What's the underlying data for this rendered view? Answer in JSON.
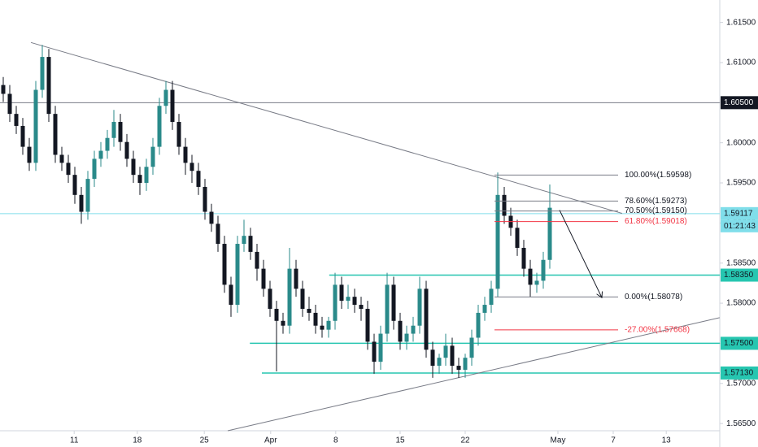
{
  "chart_data": {
    "type": "candlestick",
    "xlim": [
      0,
      110.625
    ],
    "ylim": [
      1.5641,
      1.6178
    ],
    "xticks": [
      {
        "value": 11.4,
        "label": "11"
      },
      {
        "value": 21.1,
        "label": "18"
      },
      {
        "value": 31.4,
        "label": "25"
      },
      {
        "value": 41.6,
        "label": "Apr"
      },
      {
        "value": 51.6,
        "label": "8"
      },
      {
        "value": 61.5,
        "label": "15"
      },
      {
        "value": 71.5,
        "label": "22"
      },
      {
        "value": 85.75,
        "label": "May"
      },
      {
        "value": 94.25,
        "label": "7"
      },
      {
        "value": 102.4,
        "label": "13"
      }
    ],
    "yticks": [
      {
        "value": 1.565,
        "label": "1.56500"
      },
      {
        "value": 1.57,
        "label": "1.57000"
      },
      {
        "value": 1.575,
        "label": "1.57500"
      },
      {
        "value": 1.58,
        "label": "1.58000"
      },
      {
        "value": 1.585,
        "label": "1.58500"
      },
      {
        "value": 1.59,
        "label": "1.59000"
      },
      {
        "value": 1.595,
        "label": "1.59500"
      },
      {
        "value": 1.6,
        "label": "1.60000"
      },
      {
        "value": 1.605,
        "label": "1.60500"
      },
      {
        "value": 1.61,
        "label": "1.61000"
      },
      {
        "value": 1.615,
        "label": "1.61500"
      }
    ],
    "up_color": "#2a8a8a",
    "down_color": "#131722",
    "ohlc": [
      [
        1.6072,
        1.6082,
        1.6051,
        1.6061
      ],
      [
        1.6061,
        1.6072,
        1.6026,
        1.6036
      ],
      [
        1.6036,
        1.6046,
        1.6011,
        1.6021
      ],
      [
        1.6021,
        1.6031,
        1.5985,
        1.5995
      ],
      [
        1.5995,
        1.6006,
        1.5965,
        1.5975
      ],
      [
        1.5975,
        1.6077,
        1.5965,
        1.6066
      ],
      [
        1.6066,
        1.6122,
        1.6056,
        1.6107
      ],
      [
        1.6107,
        1.6117,
        1.6026,
        1.6036
      ],
      [
        1.6036,
        1.6046,
        1.5975,
        1.5985
      ],
      [
        1.5985,
        1.5995,
        1.5965,
        1.5975
      ],
      [
        1.5975,
        1.5985,
        1.595,
        1.596
      ],
      [
        1.596,
        1.597,
        1.5924,
        1.5935
      ],
      [
        1.5935,
        1.5945,
        1.5899,
        1.5914
      ],
      [
        1.5914,
        1.5965,
        1.5904,
        1.5955
      ],
      [
        1.5955,
        1.599,
        1.5945,
        1.598
      ],
      [
        1.598,
        1.6001,
        1.597,
        1.599
      ],
      [
        1.599,
        1.6016,
        1.598,
        1.6006
      ],
      [
        1.6006,
        1.6041,
        1.5995,
        1.6026
      ],
      [
        1.6026,
        1.6036,
        1.599,
        1.6001
      ],
      [
        1.6001,
        1.6011,
        1.597,
        1.598
      ],
      [
        1.598,
        1.599,
        1.595,
        1.596
      ],
      [
        1.596,
        1.597,
        1.5935,
        1.595
      ],
      [
        1.595,
        1.598,
        1.594,
        1.597
      ],
      [
        1.597,
        1.6006,
        1.596,
        1.5995
      ],
      [
        1.5995,
        1.6056,
        1.5985,
        1.6046
      ],
      [
        1.6046,
        1.6077,
        1.6036,
        1.6066
      ],
      [
        1.6066,
        1.6077,
        1.6016,
        1.6026
      ],
      [
        1.6026,
        1.6036,
        1.5985,
        1.5995
      ],
      [
        1.5995,
        1.6006,
        1.596,
        1.5975
      ],
      [
        1.5975,
        1.5985,
        1.595,
        1.5965
      ],
      [
        1.5965,
        1.5975,
        1.5935,
        1.5945
      ],
      [
        1.5945,
        1.5955,
        1.5904,
        1.5914
      ],
      [
        1.5914,
        1.5924,
        1.5889,
        1.5899
      ],
      [
        1.5899,
        1.5909,
        1.5864,
        1.5874
      ],
      [
        1.5874,
        1.5884,
        1.5813,
        1.5823
      ],
      [
        1.5823,
        1.5833,
        1.5783,
        1.5798
      ],
      [
        1.5798,
        1.5884,
        1.5788,
        1.5874
      ],
      [
        1.5874,
        1.5904,
        1.5864,
        1.5884
      ],
      [
        1.5884,
        1.5894,
        1.5854,
        1.5864
      ],
      [
        1.5864,
        1.5874,
        1.5828,
        1.5843
      ],
      [
        1.5843,
        1.5854,
        1.5808,
        1.5818
      ],
      [
        1.5818,
        1.5828,
        1.5783,
        1.5793
      ],
      [
        1.5793,
        1.5803,
        1.5715,
        1.5778
      ],
      [
        1.5778,
        1.5788,
        1.5762,
        1.5772
      ],
      [
        1.5772,
        1.5869,
        1.5762,
        1.5843
      ],
      [
        1.5843,
        1.5854,
        1.5808,
        1.5818
      ],
      [
        1.5818,
        1.5828,
        1.5783,
        1.5793
      ],
      [
        1.5793,
        1.5808,
        1.5778,
        1.5788
      ],
      [
        1.5788,
        1.5798,
        1.5762,
        1.5772
      ],
      [
        1.5772,
        1.5783,
        1.5757,
        1.5767
      ],
      [
        1.5767,
        1.5783,
        1.5757,
        1.5778
      ],
      [
        1.5778,
        1.5838,
        1.5767,
        1.5823
      ],
      [
        1.5823,
        1.5833,
        1.5793,
        1.5803
      ],
      [
        1.5803,
        1.5823,
        1.5793,
        1.5808
      ],
      [
        1.5808,
        1.5818,
        1.5788,
        1.5798
      ],
      [
        1.5798,
        1.5808,
        1.5778,
        1.5793
      ],
      [
        1.5793,
        1.5803,
        1.5742,
        1.5752
      ],
      [
        1.5752,
        1.5762,
        1.5712,
        1.5727
      ],
      [
        1.5727,
        1.5772,
        1.5717,
        1.5762
      ],
      [
        1.5762,
        1.5838,
        1.5752,
        1.5823
      ],
      [
        1.5823,
        1.5833,
        1.5767,
        1.5778
      ],
      [
        1.5778,
        1.5788,
        1.5742,
        1.5752
      ],
      [
        1.5752,
        1.5772,
        1.5742,
        1.5762
      ],
      [
        1.5762,
        1.5783,
        1.5752,
        1.5772
      ],
      [
        1.5772,
        1.5833,
        1.5762,
        1.5818
      ],
      [
        1.5818,
        1.5828,
        1.5732,
        1.5742
      ],
      [
        1.5742,
        1.5752,
        1.5707,
        1.5722
      ],
      [
        1.5722,
        1.5737,
        1.5712,
        1.5732
      ],
      [
        1.5732,
        1.5762,
        1.5722,
        1.5747
      ],
      [
        1.5747,
        1.5757,
        1.5712,
        1.5722
      ],
      [
        1.5722,
        1.5732,
        1.5707,
        1.5717
      ],
      [
        1.5717,
        1.5737,
        1.5707,
        1.5732
      ],
      [
        1.5732,
        1.5767,
        1.5722,
        1.5757
      ],
      [
        1.5757,
        1.5798,
        1.5747,
        1.5788
      ],
      [
        1.5788,
        1.5808,
        1.5778,
        1.5798
      ],
      [
        1.5798,
        1.5828,
        1.5788,
        1.5818
      ],
      [
        1.5818,
        1.5963,
        1.5808,
        1.5935
      ],
      [
        1.5935,
        1.5945,
        1.5899,
        1.5909
      ],
      [
        1.5909,
        1.5919,
        1.5884,
        1.5894
      ],
      [
        1.5894,
        1.5904,
        1.5859,
        1.5869
      ],
      [
        1.5869,
        1.5879,
        1.5833,
        1.5843
      ],
      [
        1.5843,
        1.5854,
        1.5808,
        1.5823
      ],
      [
        1.5823,
        1.5838,
        1.5813,
        1.5828
      ],
      [
        1.5828,
        1.5864,
        1.5818,
        1.5854
      ],
      [
        1.5854,
        1.5948,
        1.5843,
        1.5919
      ]
    ],
    "trendlines": [
      {
        "x": [
          4.75,
          95.6
        ],
        "y": [
          1.6125,
          1.5912
        ]
      },
      {
        "x": [
          35,
          110.6
        ],
        "y": [
          1.5641,
          1.5782
        ]
      }
    ],
    "hlines": [
      {
        "value": 1.605,
        "label": "1.60500",
        "color": "#787b86",
        "box": "#131722",
        "text_color": "#ffffff",
        "from": 0
      },
      {
        "value": 1.59117,
        "label": "1.59117",
        "color": "#80deea",
        "box": "#80deea",
        "text_color": "#131722",
        "from": 0
      },
      {
        "value": 1.5835,
        "label": "1.58350",
        "color": "#26c6b0",
        "box": "#26c6b0",
        "text_color": "#131722",
        "from": 50.6
      },
      {
        "value": 1.575,
        "label": "1.57500",
        "color": "#26c6b0",
        "box": "#26c6b0",
        "text_color": "#131722",
        "from": 38.4
      },
      {
        "value": 1.5713,
        "label": "1.57130",
        "color": "#26c6b0",
        "box": "#26c6b0",
        "text_color": "#131722",
        "from": 40.25
      }
    ],
    "countdown": "01:21:43",
    "fib": {
      "x": [
        76,
        95
      ],
      "levels": [
        {
          "value": 1.59598,
          "label": "100.00%(1.59598)",
          "color": "#787b86"
        },
        {
          "value": 1.59273,
          "label": "78.60%(1.59273)",
          "color": "#787b86"
        },
        {
          "value": 1.5915,
          "label": "70.50%(1.59150)",
          "color": "#787b86"
        },
        {
          "value": 1.59018,
          "label": "61.80%(1.59018)",
          "color": "#f23645"
        },
        {
          "value": 1.58078,
          "label": "0.00%(1.58078)",
          "color": "#787b86"
        },
        {
          "value": 1.57668,
          "label": "-27.00%(1.57668)",
          "color": "#f23645"
        }
      ]
    },
    "arrow": {
      "x": [
        86,
        92.5
      ],
      "y": [
        1.5916,
        1.5807
      ]
    }
  }
}
